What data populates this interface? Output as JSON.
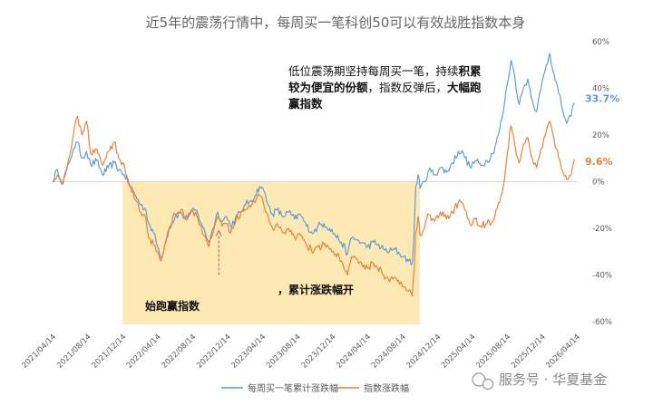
{
  "chart_data": {
    "type": "line",
    "title": "近5年的震荡行情中，每周买一笔科创50可以有效战胜指数本身",
    "ylim": [
      -60,
      60
    ],
    "y_ticks": [
      "60%",
      "40%",
      "20%",
      "0%",
      "-20%",
      "-40%",
      "-60%"
    ],
    "x_ticks": [
      "2021/04/14",
      "2021/08/14",
      "2021/12/14",
      "2022/04/14",
      "2022/08/14",
      "2022/12/14",
      "2023/04/14",
      "2023/08/14",
      "2023/12/14",
      "2024/04/14",
      "2024/08/14",
      "2024/12/14",
      "2025/04/14",
      "2025/08/14",
      "2025/12/14",
      "2026/04/14"
    ],
    "x_range": [
      "2021/04/14",
      "2026/04/14"
    ],
    "grid": false,
    "legend_position": "bottom",
    "series": [
      {
        "name": "每周买一笔累计涨跌幅",
        "color": "#5b9bd5",
        "end_label": "33.7%",
        "values": [
          [
            "2021/04/14",
            0
          ],
          [
            "2021/05/01",
            5
          ],
          [
            "2021/05/20",
            -1
          ],
          [
            "2021/06/10",
            8
          ],
          [
            "2021/06/25",
            14
          ],
          [
            "2021/07/10",
            17
          ],
          [
            "2021/07/25",
            10
          ],
          [
            "2021/08/10",
            13
          ],
          [
            "2021/08/25",
            7
          ],
          [
            "2021/09/15",
            9
          ],
          [
            "2021/10/05",
            3
          ],
          [
            "2021/10/25",
            6
          ],
          [
            "2021/11/15",
            8
          ],
          [
            "2021/12/01",
            5
          ],
          [
            "2021/12/20",
            3
          ],
          [
            "2022/01/10",
            -2
          ],
          [
            "2022/01/28",
            -6
          ],
          [
            "2022/02/15",
            -10
          ],
          [
            "2022/03/05",
            -12
          ],
          [
            "2022/03/15",
            -18
          ],
          [
            "2022/04/01",
            -22
          ],
          [
            "2022/04/15",
            -28
          ],
          [
            "2022/04/27",
            -33
          ],
          [
            "2022/05/10",
            -27
          ],
          [
            "2022/05/25",
            -20
          ],
          [
            "2022/06/15",
            -15
          ],
          [
            "2022/07/05",
            -13
          ],
          [
            "2022/07/20",
            -16
          ],
          [
            "2022/08/05",
            -14
          ],
          [
            "2022/08/25",
            -12
          ],
          [
            "2022/09/15",
            -18
          ],
          [
            "2022/10/10",
            -26
          ],
          [
            "2022/10/25",
            -20
          ],
          [
            "2022/11/10",
            -13
          ],
          [
            "2022/11/25",
            -17
          ],
          [
            "2022/12/10",
            -15
          ],
          [
            "2022/12/25",
            -19
          ],
          [
            "2023/01/10",
            -16
          ],
          [
            "2023/01/30",
            -13
          ],
          [
            "2023/02/15",
            -10
          ],
          [
            "2023/03/05",
            -8
          ],
          [
            "2023/03/20",
            -6
          ],
          [
            "2023/04/05",
            -2
          ],
          [
            "2023/04/20",
            -4
          ],
          [
            "2023/05/05",
            -10
          ],
          [
            "2023/05/20",
            -14
          ],
          [
            "2023/06/05",
            -12
          ],
          [
            "2023/06/25",
            -15
          ],
          [
            "2023/07/15",
            -13
          ],
          [
            "2023/08/05",
            -16
          ],
          [
            "2023/08/25",
            -14
          ],
          [
            "2023/09/15",
            -19
          ],
          [
            "2023/10/10",
            -22
          ],
          [
            "2023/10/25",
            -19
          ],
          [
            "2023/11/15",
            -18
          ],
          [
            "2023/12/05",
            -20
          ],
          [
            "2023/12/25",
            -23
          ],
          [
            "2024/01/15",
            -26
          ],
          [
            "2024/02/05",
            -31
          ],
          [
            "2024/02/20",
            -24
          ],
          [
            "2024/03/10",
            -25
          ],
          [
            "2024/03/25",
            -26
          ],
          [
            "2024/04/15",
            -28
          ],
          [
            "2024/05/05",
            -26
          ],
          [
            "2024/05/20",
            -27
          ],
          [
            "2024/06/10",
            -29
          ],
          [
            "2024/06/30",
            -30
          ],
          [
            "2024/07/20",
            -29
          ],
          [
            "2024/08/05",
            -31
          ],
          [
            "2024/08/20",
            -32
          ],
          [
            "2024/09/05",
            -34
          ],
          [
            "2024/09/18",
            -35
          ],
          [
            "2024/09/24",
            -22
          ],
          [
            "2024/09/30",
            -2
          ],
          [
            "2024/10/08",
            3
          ],
          [
            "2024/10/15",
            -3
          ],
          [
            "2024/10/30",
            0
          ],
          [
            "2024/11/15",
            5
          ],
          [
            "2024/12/05",
            3
          ],
          [
            "2024/12/25",
            6
          ],
          [
            "2025/01/15",
            4
          ],
          [
            "2025/02/05",
            8
          ],
          [
            "2025/02/25",
            13
          ],
          [
            "2025/03/15",
            12
          ],
          [
            "2025/04/07",
            6
          ],
          [
            "2025/04/25",
            9
          ],
          [
            "2025/05/15",
            7
          ],
          [
            "2025/06/05",
            9
          ],
          [
            "2025/06/25",
            12
          ],
          [
            "2025/07/15",
            20
          ],
          [
            "2025/08/01",
            30
          ],
          [
            "2025/08/15",
            42
          ],
          [
            "2025/08/28",
            52
          ],
          [
            "2025/09/10",
            45
          ],
          [
            "2025/09/25",
            33
          ],
          [
            "2025/10/10",
            40
          ],
          [
            "2025/10/25",
            44
          ],
          [
            "2025/11/10",
            35
          ],
          [
            "2025/11/25",
            30
          ],
          [
            "2025/12/10",
            40
          ],
          [
            "2025/12/25",
            48
          ],
          [
            "2026/01/10",
            55
          ],
          [
            "2026/01/25",
            46
          ],
          [
            "2026/02/10",
            38
          ],
          [
            "2026/02/25",
            30
          ],
          [
            "2026/03/10",
            25
          ],
          [
            "2026/03/25",
            28
          ],
          [
            "2026/04/05",
            33.7
          ]
        ]
      },
      {
        "name": "指数涨跌幅",
        "color": "#ed7d31",
        "end_label": "9.6%",
        "values": [
          [
            "2021/04/14",
            0
          ],
          [
            "2021/05/01",
            3
          ],
          [
            "2021/05/20",
            0
          ],
          [
            "2021/06/10",
            10
          ],
          [
            "2021/06/25",
            20
          ],
          [
            "2021/07/10",
            28
          ],
          [
            "2021/07/25",
            20
          ],
          [
            "2021/08/10",
            26
          ],
          [
            "2021/08/25",
            12
          ],
          [
            "2021/09/15",
            14
          ],
          [
            "2021/10/05",
            7
          ],
          [
            "2021/10/25",
            13
          ],
          [
            "2021/11/15",
            17
          ],
          [
            "2021/12/01",
            10
          ],
          [
            "2021/12/20",
            7
          ],
          [
            "2022/01/10",
            -2
          ],
          [
            "2022/01/28",
            -8
          ],
          [
            "2022/02/15",
            -13
          ],
          [
            "2022/03/05",
            -16
          ],
          [
            "2022/03/15",
            -24
          ],
          [
            "2022/04/01",
            -27
          ],
          [
            "2022/04/15",
            -30
          ],
          [
            "2022/04/27",
            -34
          ],
          [
            "2022/05/10",
            -27
          ],
          [
            "2022/05/25",
            -20
          ],
          [
            "2022/06/15",
            -14
          ],
          [
            "2022/07/05",
            -12
          ],
          [
            "2022/07/20",
            -16
          ],
          [
            "2022/08/05",
            -14
          ],
          [
            "2022/08/25",
            -13
          ],
          [
            "2022/09/15",
            -20
          ],
          [
            "2022/10/10",
            -28
          ],
          [
            "2022/10/25",
            -22
          ],
          [
            "2022/11/10",
            -15
          ],
          [
            "2022/11/25",
            -19
          ],
          [
            "2022/12/10",
            -18
          ],
          [
            "2022/12/25",
            -22
          ],
          [
            "2023/01/10",
            -18
          ],
          [
            "2023/01/30",
            -13
          ],
          [
            "2023/02/15",
            -12
          ],
          [
            "2023/03/05",
            -11
          ],
          [
            "2023/03/20",
            -9
          ],
          [
            "2023/04/05",
            -6
          ],
          [
            "2023/04/20",
            -10
          ],
          [
            "2023/05/05",
            -15
          ],
          [
            "2023/05/20",
            -20
          ],
          [
            "2023/06/05",
            -18
          ],
          [
            "2023/06/25",
            -22
          ],
          [
            "2023/07/15",
            -20
          ],
          [
            "2023/08/05",
            -24
          ],
          [
            "2023/08/25",
            -23
          ],
          [
            "2023/09/15",
            -27
          ],
          [
            "2023/10/10",
            -30
          ],
          [
            "2023/10/25",
            -28
          ],
          [
            "2023/11/15",
            -27
          ],
          [
            "2023/12/05",
            -29
          ],
          [
            "2023/12/25",
            -31
          ],
          [
            "2024/01/15",
            -34
          ],
          [
            "2024/02/05",
            -40
          ],
          [
            "2024/02/20",
            -32
          ],
          [
            "2024/03/10",
            -33
          ],
          [
            "2024/03/25",
            -35
          ],
          [
            "2024/04/15",
            -37
          ],
          [
            "2024/05/05",
            -35
          ],
          [
            "2024/05/20",
            -37
          ],
          [
            "2024/06/10",
            -40
          ],
          [
            "2024/06/30",
            -43
          ],
          [
            "2024/07/20",
            -41
          ],
          [
            "2024/08/05",
            -44
          ],
          [
            "2024/08/20",
            -45
          ],
          [
            "2024/09/05",
            -47
          ],
          [
            "2024/09/18",
            -49
          ],
          [
            "2024/09/24",
            -38
          ],
          [
            "2024/09/30",
            -22
          ],
          [
            "2024/10/08",
            -15
          ],
          [
            "2024/10/15",
            -23
          ],
          [
            "2024/10/30",
            -20
          ],
          [
            "2024/11/15",
            -14
          ],
          [
            "2024/12/05",
            -17
          ],
          [
            "2024/12/25",
            -13
          ],
          [
            "2025/01/15",
            -16
          ],
          [
            "2025/02/05",
            -13
          ],
          [
            "2025/02/25",
            -9
          ],
          [
            "2025/03/15",
            -10
          ],
          [
            "2025/04/07",
            -18
          ],
          [
            "2025/04/25",
            -16
          ],
          [
            "2025/05/15",
            -19
          ],
          [
            "2025/06/05",
            -18
          ],
          [
            "2025/06/25",
            -17
          ],
          [
            "2025/07/15",
            -9
          ],
          [
            "2025/08/01",
            -2
          ],
          [
            "2025/08/15",
            12
          ],
          [
            "2025/08/28",
            24
          ],
          [
            "2025/09/10",
            16
          ],
          [
            "2025/09/25",
            8
          ],
          [
            "2025/10/10",
            16
          ],
          [
            "2025/10/25",
            19
          ],
          [
            "2025/11/10",
            10
          ],
          [
            "2025/11/25",
            6
          ],
          [
            "2025/12/10",
            14
          ],
          [
            "2025/12/25",
            20
          ],
          [
            "2026/01/10",
            26
          ],
          [
            "2026/01/25",
            18
          ],
          [
            "2026/02/10",
            10
          ],
          [
            "2026/02/25",
            4
          ],
          [
            "2026/03/10",
            1
          ],
          [
            "2026/03/25",
            3
          ],
          [
            "2026/04/05",
            9.6
          ]
        ]
      }
    ],
    "highlight": {
      "from": "2021/12/14",
      "to": "2024/10/14",
      "color": "#fce9b4"
    },
    "annotations": [
      {
        "id": "top-right",
        "lines": [
          [
            {
              "text": "低位震荡期坚持每周买一笔，持续",
              "bold": false
            },
            {
              "text": "积累",
              "bold": true
            }
          ],
          [
            {
              "text": "较为便宜的份额",
              "bold": true
            },
            {
              "text": "，指数反弹后，",
              "bold": false
            },
            {
              "text": "大幅跑",
              "bold": true
            }
          ],
          [
            {
              "text": "赢指数",
              "bold": true
            }
          ]
        ]
      },
      {
        "id": "bottom-left",
        "lines": [
          "，累计涨跌幅开",
          "始跑赢指数"
        ]
      }
    ],
    "marker": {
      "x": "2022/11/14",
      "y_from": -40,
      "y_to": -21
    }
  },
  "watermark": "服务号 · 华夏基金"
}
